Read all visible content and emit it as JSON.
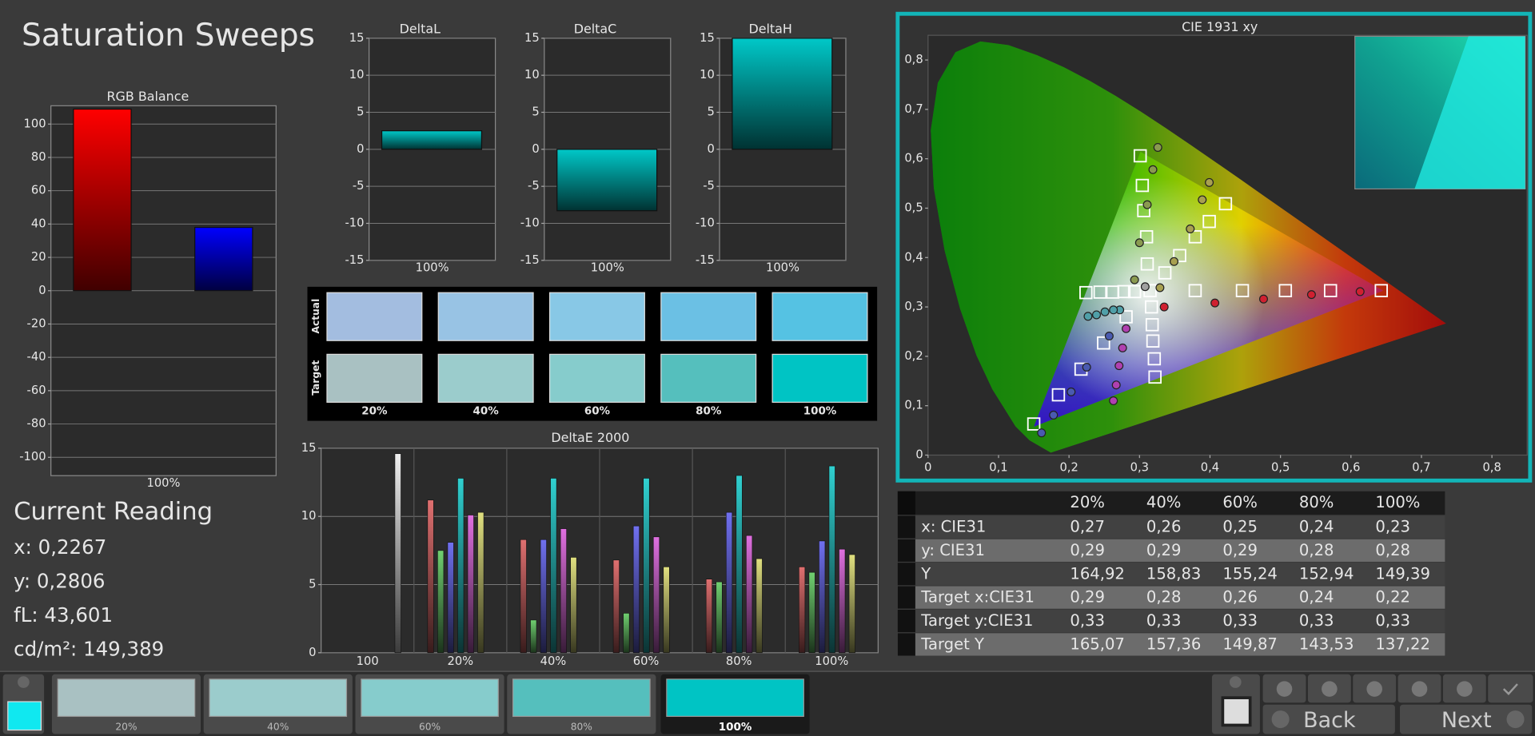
{
  "title": "Saturation Sweeps",
  "chart_data": [
    {
      "type": "bar",
      "title": "RGB Balance",
      "categories": [
        "100%"
      ],
      "series": [
        {
          "color": "#ff0000",
          "values": [
            109
          ]
        },
        {
          "color": "#00c000",
          "values": [
            0
          ]
        },
        {
          "color": "#0000ff",
          "values": [
            38
          ]
        }
      ],
      "ylim": [
        -111,
        111
      ],
      "yticks": [
        -100,
        -80,
        -60,
        -40,
        -20,
        0,
        20,
        40,
        60,
        80,
        100
      ],
      "grid": true
    },
    {
      "type": "bar",
      "title": "DeltaL",
      "categories": [
        "100%"
      ],
      "values": [
        2.5
      ],
      "color": "#00c8c8",
      "ylim": [
        -15,
        15
      ],
      "yticks": [
        -15,
        -10,
        -5,
        0,
        5,
        10,
        15
      ],
      "grid": true
    },
    {
      "type": "bar",
      "title": "DeltaC",
      "categories": [
        "100%"
      ],
      "values": [
        -8.3
      ],
      "color": "#00c8c8",
      "ylim": [
        -15,
        15
      ],
      "yticks": [
        -15,
        -10,
        -5,
        0,
        5,
        10,
        15
      ],
      "grid": true
    },
    {
      "type": "bar",
      "title": "DeltaH",
      "categories": [
        "100%"
      ],
      "values": [
        15
      ],
      "color": "#00c8c8",
      "ylim": [
        -15,
        15
      ],
      "yticks": [
        -15,
        -10,
        -5,
        0,
        5,
        10,
        15
      ],
      "grid": true
    },
    {
      "type": "grouped-bar",
      "title": "DeltaE 2000",
      "categories": [
        "100",
        "20%",
        "40%",
        "60%",
        "80%",
        "100%"
      ],
      "series": [
        {
          "color": "#e07070",
          "values": [
            null,
            11.2,
            8.3,
            6.8,
            5.4,
            6.3
          ]
        },
        {
          "color": "#70d070",
          "values": [
            null,
            7.5,
            2.4,
            2.9,
            5.2,
            5.9
          ]
        },
        {
          "color": "#7070f0",
          "values": [
            null,
            8.1,
            8.3,
            9.3,
            10.3,
            8.2
          ]
        },
        {
          "color": "#30d0d0",
          "values": [
            null,
            12.8,
            12.8,
            12.8,
            13.0,
            13.7
          ]
        },
        {
          "color": "#e070e0",
          "values": [
            null,
            10.1,
            9.1,
            8.5,
            8.6,
            7.6
          ]
        },
        {
          "color": "#e0e080",
          "values": [
            null,
            10.3,
            7.0,
            6.3,
            6.9,
            7.2
          ]
        },
        {
          "color": "#f0f0f0",
          "values": [
            14.6,
            null,
            null,
            null,
            null,
            null
          ]
        }
      ],
      "ylim": [
        0,
        15
      ],
      "yticks": [
        0,
        5,
        10,
        15
      ],
      "grid": true
    },
    {
      "type": "scatter",
      "title": "CIE 1931 xy",
      "xlim": [
        0,
        0.85
      ],
      "ylim": [
        0,
        0.85
      ],
      "xticks": [
        0,
        {
          "value": 0.1,
          "label": "0,1"
        },
        {
          "value": 0.2,
          "label": "0,2"
        },
        {
          "value": 0.3,
          "label": "0,3"
        },
        {
          "value": 0.4,
          "label": "0,4"
        },
        {
          "value": 0.5,
          "label": "0,5"
        },
        {
          "value": 0.6,
          "label": "0,6"
        },
        {
          "value": 0.7,
          "label": "0,7"
        },
        {
          "value": 0.8,
          "label": "0,8"
        }
      ],
      "yticks": [
        0,
        {
          "value": 0.1,
          "label": "0,1"
        },
        {
          "value": 0.2,
          "label": "0,2"
        },
        {
          "value": 0.3,
          "label": "0,3"
        },
        {
          "value": 0.4,
          "label": "0,4"
        },
        {
          "value": 0.5,
          "label": "0,5"
        },
        {
          "value": 0.6,
          "label": "0,6"
        },
        {
          "value": 0.7,
          "label": "0,7"
        },
        {
          "value": 0.8,
          "label": "0,8"
        }
      ],
      "grid": false,
      "series": [
        {
          "marker": "square",
          "color": "#ffffff",
          "x": [
            0.379,
            0.446,
            0.507,
            0.571,
            0.643,
            0.311,
            0.31,
            0.306,
            0.304,
            0.301,
            0.281,
            0.249,
            0.217,
            0.185,
            0.15,
            0.293,
            0.278,
            0.262,
            0.244,
            0.224,
            0.317,
            0.318,
            0.319,
            0.321,
            0.322,
            0.336,
            0.357,
            0.379,
            0.399,
            0.422,
            0.315
          ],
          "y": [
            0.333,
            0.333,
            0.333,
            0.333,
            0.333,
            0.387,
            0.442,
            0.495,
            0.546,
            0.606,
            0.28,
            0.227,
            0.174,
            0.122,
            0.063,
            0.331,
            0.331,
            0.33,
            0.33,
            0.329,
            0.3,
            0.264,
            0.231,
            0.195,
            0.158,
            0.369,
            0.404,
            0.442,
            0.473,
            0.509,
            0.333
          ]
        },
        {
          "marker": "circle",
          "color": "#d02030",
          "x": [
            0.335,
            0.407,
            0.476,
            0.544,
            0.613
          ],
          "y": [
            0.3,
            0.308,
            0.316,
            0.325,
            0.331
          ]
        },
        {
          "marker": "circle",
          "color": "#8a9a50",
          "x": [
            0.293,
            0.3,
            0.311,
            0.319,
            0.326
          ],
          "y": [
            0.355,
            0.43,
            0.507,
            0.578,
            0.623
          ]
        },
        {
          "marker": "circle",
          "color": "#4a5ab0",
          "x": [
            0.257,
            0.225,
            0.203,
            0.178,
            0.161
          ],
          "y": [
            0.241,
            0.178,
            0.128,
            0.081,
            0.045
          ]
        },
        {
          "marker": "circle",
          "color": "#50a0a8",
          "x": [
            0.272,
            0.263,
            0.251,
            0.239,
            0.227
          ],
          "y": [
            0.294,
            0.294,
            0.29,
            0.284,
            0.281
          ]
        },
        {
          "marker": "circle",
          "color": "#b040b0",
          "x": [
            0.281,
            0.276,
            0.271,
            0.267,
            0.263
          ],
          "y": [
            0.256,
            0.217,
            0.181,
            0.142,
            0.11
          ]
        },
        {
          "marker": "circle",
          "color": "#a8a050",
          "x": [
            0.329,
            0.349,
            0.372,
            0.389,
            0.399
          ],
          "y": [
            0.339,
            0.392,
            0.458,
            0.517,
            0.552
          ]
        },
        {
          "marker": "circle",
          "color": "#a0a0a0",
          "x": [
            0.308
          ],
          "y": [
            0.341
          ]
        }
      ]
    }
  ],
  "swatches": {
    "row_labels": [
      "Actual",
      "Target"
    ],
    "columns": [
      "20%",
      "40%",
      "60%",
      "80%",
      "100%"
    ],
    "actual": [
      "#a3bde0",
      "#98c3e4",
      "#88c8e6",
      "#6bc0e4",
      "#55c2e3"
    ],
    "target": [
      "#a9c1c2",
      "#9bcccc",
      "#86cccc",
      "#55bfbd",
      "#00c4c4"
    ]
  },
  "current_reading": {
    "title": "Current Reading",
    "lines": [
      "x: 0,2267",
      "y: 0,2806",
      "fL: 43,601",
      "cd/m²: 149,389"
    ]
  },
  "table": {
    "columns": [
      "20%",
      "40%",
      "60%",
      "80%",
      "100%"
    ],
    "rows": [
      {
        "label": "x: CIE31",
        "cells": [
          "0,27",
          "0,26",
          "0,25",
          "0,24",
          "0,23"
        ]
      },
      {
        "label": "y: CIE31",
        "cells": [
          "0,29",
          "0,29",
          "0,29",
          "0,28",
          "0,28"
        ]
      },
      {
        "label": "Y",
        "cells": [
          "164,92",
          "158,83",
          "155,24",
          "152,94",
          "149,39"
        ]
      },
      {
        "label": "Target x:CIE31",
        "cells": [
          "0,29",
          "0,28",
          "0,26",
          "0,24",
          "0,22"
        ]
      },
      {
        "label": "Target y:CIE31",
        "cells": [
          "0,33",
          "0,33",
          "0,33",
          "0,33",
          "0,33"
        ]
      },
      {
        "label": "Target Y",
        "cells": [
          "165,07",
          "157,36",
          "149,87",
          "143,53",
          "137,22"
        ]
      }
    ]
  },
  "toolbar": {
    "current_color": "#10e8f0",
    "tiles": [
      {
        "label": "20%",
        "color": "#a9c1c2"
      },
      {
        "label": "40%",
        "color": "#9bcccc"
      },
      {
        "label": "60%",
        "color": "#86cccc"
      },
      {
        "label": "80%",
        "color": "#55bfbd"
      },
      {
        "label": "100%",
        "color": "#00c4c4"
      }
    ],
    "selected": 4,
    "buttons": [
      "Back",
      "Next"
    ]
  }
}
